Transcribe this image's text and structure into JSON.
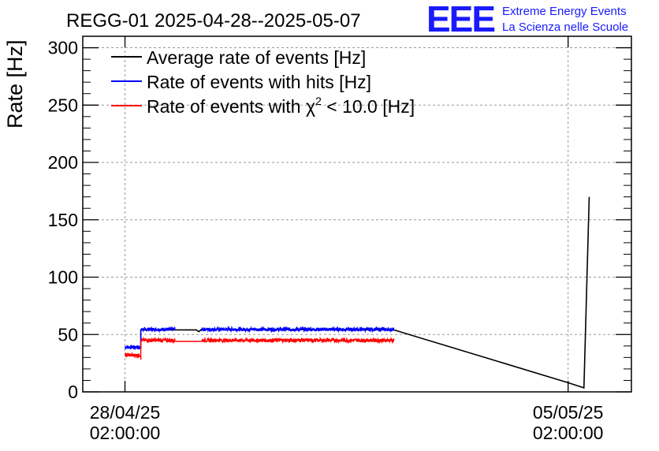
{
  "chart_data": {
    "type": "line",
    "title": "REGG-01 2025-04-28--2025-05-07",
    "ylabel": "Rate [Hz]",
    "xlabel": "",
    "x_axis_format": "time",
    "xlim": [
      "2025-04-27 10:00:00",
      "2025-05-06 02:00:00"
    ],
    "ylim": [
      0,
      310
    ],
    "y_ticks": [
      0,
      50,
      100,
      150,
      200,
      250,
      300
    ],
    "x_ticks": [
      {
        "t": "2025-04-28 02:00:00",
        "date": "28/04/25",
        "time": "02:00:00"
      },
      {
        "t": "2025-05-05 02:00:00",
        "date": "05/05/25",
        "time": "02:00:00"
      }
    ],
    "grid": true,
    "legend_position": "top-left",
    "branding": {
      "logo": "EEE",
      "line1": "Extreme Energy Events",
      "line2": "La Scienza nelle Scuole"
    },
    "colors": {
      "average": "#000000",
      "hits": "#0000ff",
      "chi2": "#ff0000"
    },
    "series": [
      {
        "name": "Average rate of events [Hz]",
        "color": "#000000",
        "points": [
          [
            "2025-04-28 02:00:00",
            38.5
          ],
          [
            "2025-04-28 08:00:00",
            38.5
          ],
          [
            "2025-04-28 08:00:00",
            54
          ],
          [
            "2025-04-29 05:00:00",
            54
          ],
          [
            "2025-04-29 06:00:00",
            52.5
          ],
          [
            "2025-04-29 07:00:00",
            54.5
          ],
          [
            "2025-05-02 08:00:00",
            54
          ],
          [
            "2025-05-05 02:00:00",
            8
          ],
          [
            "2025-05-05 08:00:00",
            3.5
          ],
          [
            "2025-05-05 10:00:00",
            170
          ]
        ]
      },
      {
        "name": "Rate of events with hits [Hz]",
        "color": "#0000ff",
        "segments": [
          {
            "start": "2025-04-28 02:00:00",
            "end": "2025-04-28 08:00:00",
            "value": 39,
            "noise": 1.5
          },
          {
            "start": "2025-04-28 08:00:00",
            "end": "2025-04-28 21:00:00",
            "value": 54.5,
            "noise": 1.6
          },
          {
            "start": "2025-04-29 07:00:00",
            "end": "2025-05-02 08:00:00",
            "value": 54.5,
            "noise": 1.6
          }
        ]
      },
      {
        "name": "Rate of events with χ² < 10.0 [Hz]",
        "color": "#ff0000",
        "segments": [
          {
            "start": "2025-04-28 02:00:00",
            "end": "2025-04-28 08:00:00",
            "value": 32,
            "noise": 1.5
          },
          {
            "start": "2025-04-28 08:00:00",
            "end": "2025-04-28 21:00:00",
            "value": 45,
            "noise": 1.6
          },
          {
            "start": "2025-04-29 07:00:00",
            "end": "2025-05-02 08:00:00",
            "value": 45,
            "noise": 1.6
          }
        ],
        "connectors": [
          [
            "2025-04-28 21:00:00",
            44
          ],
          [
            "2025-04-29 07:00:00",
            44
          ]
        ]
      }
    ],
    "legend": [
      {
        "label": "Average rate of events [Hz]",
        "color": "#000000"
      },
      {
        "label": "Rate of events with hits [Hz]",
        "color": "#0000ff"
      },
      {
        "label_prefix": "Rate of events with ",
        "label_symbol": "χ",
        "label_sup": "2",
        "label_suffix": " < 10.0 [Hz]",
        "color": "#ff0000"
      }
    ]
  }
}
